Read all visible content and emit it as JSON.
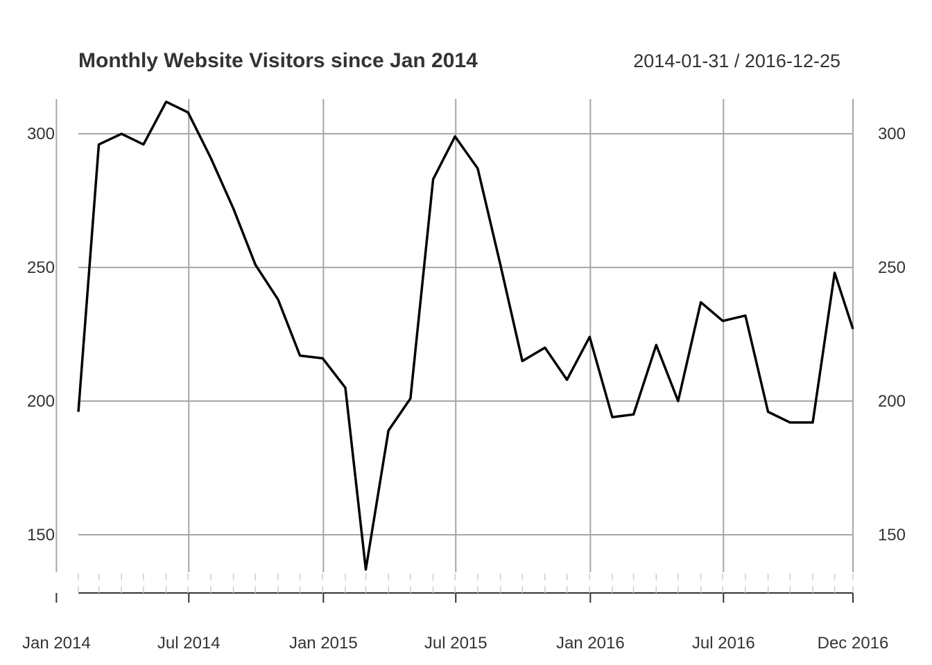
{
  "chart_data": {
    "type": "line",
    "title": "Monthly Website Visitors since Jan 2014",
    "date_range_label": "2014-01-31 / 2016-12-25",
    "x_tick_labels": [
      "Jan 2014",
      "Jul 2014",
      "Jan 2015",
      "Jul 2015",
      "Jan 2016",
      "Jul 2016",
      "Dec 2016"
    ],
    "y_ticks": [
      150,
      200,
      250,
      300
    ],
    "ylim": [
      136,
      313
    ],
    "grid": true,
    "y_axis_both_sides": true,
    "series": [
      {
        "color": "#000000",
        "x": [
          "2014-01-31",
          "2014-02-28",
          "2014-03-31",
          "2014-04-30",
          "2014-05-31",
          "2014-06-30",
          "2014-07-31",
          "2014-08-31",
          "2014-09-30",
          "2014-10-31",
          "2014-11-30",
          "2014-12-31",
          "2015-01-31",
          "2015-02-28",
          "2015-03-31",
          "2015-04-30",
          "2015-05-31",
          "2015-06-30",
          "2015-07-31",
          "2015-08-31",
          "2015-09-30",
          "2015-10-31",
          "2015-11-30",
          "2015-12-31",
          "2016-01-31",
          "2016-02-29",
          "2016-03-31",
          "2016-04-30",
          "2016-05-31",
          "2016-06-30",
          "2016-07-31",
          "2016-08-31",
          "2016-09-30",
          "2016-10-31",
          "2016-11-30",
          "2016-12-25"
        ],
        "values": [
          196,
          296,
          300,
          296,
          312,
          308,
          291,
          272,
          251,
          238,
          217,
          216,
          205,
          137,
          189,
          201,
          283,
          299,
          287,
          251,
          215,
          220,
          208,
          224,
          194,
          195,
          221,
          200,
          237,
          230,
          232,
          196,
          192,
          192,
          248,
          227
        ]
      }
    ]
  }
}
